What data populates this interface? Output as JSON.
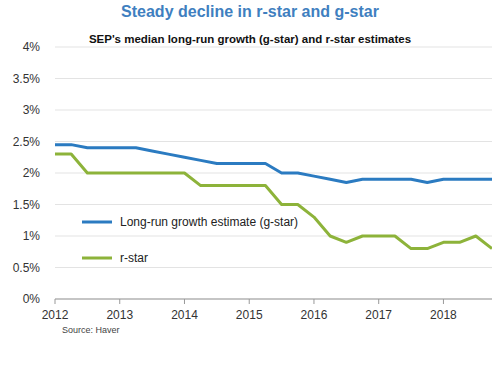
{
  "chart_data": {
    "type": "line",
    "title": "Steady decline in r-star and g-star",
    "subtitle": "SEP's median long-run growth (g-star) and r-star estimates",
    "source": "Source: Haver",
    "x": [
      2012,
      2012.25,
      2012.5,
      2012.75,
      2013,
      2013.25,
      2013.5,
      2013.75,
      2014,
      2014.25,
      2014.5,
      2014.75,
      2015,
      2015.25,
      2015.5,
      2015.75,
      2016,
      2016.25,
      2016.5,
      2016.75,
      2017,
      2017.25,
      2017.5,
      2017.75,
      2018,
      2018.25,
      2018.5,
      2018.75
    ],
    "series": [
      {
        "name": "Long-run growth estimate (g-star)",
        "color": "#2b7bc1",
        "values": [
          2.45,
          2.45,
          2.4,
          2.4,
          2.4,
          2.4,
          2.35,
          2.3,
          2.25,
          2.2,
          2.15,
          2.15,
          2.15,
          2.15,
          2.0,
          2.0,
          1.95,
          1.9,
          1.85,
          1.9,
          1.9,
          1.9,
          1.9,
          1.85,
          1.9,
          1.9,
          1.9,
          1.9
        ]
      },
      {
        "name": "r-star",
        "color": "#8db33a",
        "values": [
          2.3,
          2.3,
          2.0,
          2.0,
          2.0,
          2.0,
          2.0,
          2.0,
          2.0,
          1.8,
          1.8,
          1.8,
          1.8,
          1.8,
          1.5,
          1.5,
          1.3,
          1.0,
          0.9,
          1.0,
          1.0,
          1.0,
          0.8,
          0.8,
          0.9,
          0.9,
          1.0,
          0.8
        ]
      }
    ],
    "xlim": [
      2012,
      2018.75
    ],
    "xticks": [
      2012,
      2013,
      2014,
      2015,
      2016,
      2017,
      2018
    ],
    "ylim": [
      0,
      4
    ],
    "yticks": [
      {
        "value": 0,
        "label": "0%"
      },
      {
        "value": 0.5,
        "label": "0.5%"
      },
      {
        "value": 1,
        "label": "1%"
      },
      {
        "value": 1.5,
        "label": "1.5%"
      },
      {
        "value": 2,
        "label": "2%"
      },
      {
        "value": 2.5,
        "label": "2.5%"
      },
      {
        "value": 3,
        "label": "3%"
      },
      {
        "value": 3.5,
        "label": "3.5%"
      },
      {
        "value": 4,
        "label": "4%"
      }
    ],
    "grid": true,
    "legend": "bottom-left"
  }
}
